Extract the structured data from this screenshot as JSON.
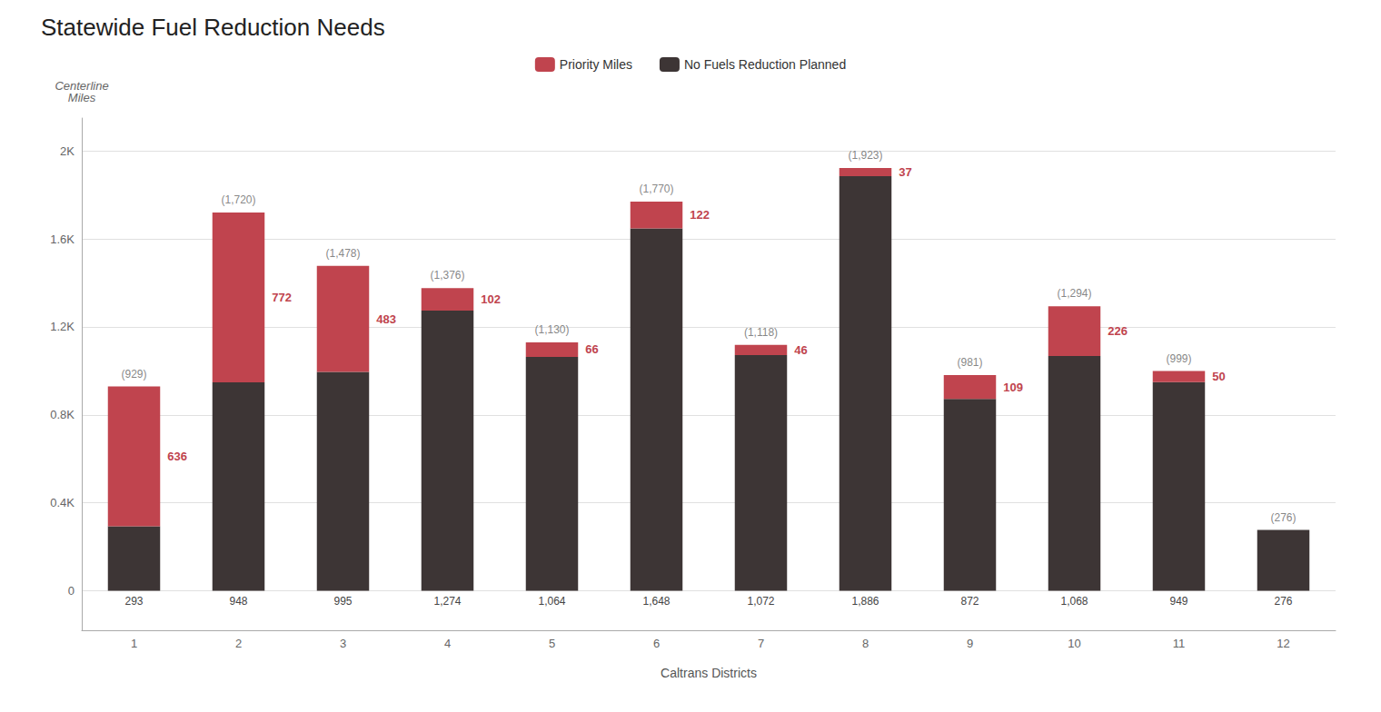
{
  "chart_data": {
    "type": "bar",
    "title": "Statewide Fuel Reduction Needs",
    "xlabel": "Caltrans Districts",
    "ylabel": "Centerline\nMiles",
    "categories": [
      "1",
      "2",
      "3",
      "4",
      "5",
      "6",
      "7",
      "8",
      "9",
      "10",
      "11",
      "12"
    ],
    "stacked": true,
    "series": [
      {
        "name": "No Fuels Reduction Planned",
        "color": "#3d3535",
        "values": [
          293,
          948,
          995,
          1274,
          1064,
          1648,
          1072,
          1886,
          872,
          1068,
          949,
          276
        ],
        "data_labels": true,
        "value_labels": [
          "293",
          "948",
          "995",
          "1,274",
          "1,064",
          "1,648",
          "1,072",
          "1,886",
          "872",
          "1,068",
          "949",
          "276"
        ]
      },
      {
        "name": "Priority Miles",
        "color": "#c0444e",
        "values": [
          636,
          772,
          483,
          102,
          66,
          122,
          46,
          37,
          109,
          226,
          50,
          0
        ],
        "data_labels": true,
        "value_labels": [
          "636",
          "772",
          "483",
          "102",
          "66",
          "122",
          "46",
          "37",
          "109",
          "226",
          "50",
          null
        ]
      }
    ],
    "annotations": [
      {
        "x": "1",
        "y": 929,
        "text": "(929)"
      },
      {
        "x": "2",
        "y": 1720,
        "text": "(1,720)"
      },
      {
        "x": "3",
        "y": 1478,
        "text": "(1,478)"
      },
      {
        "x": "4",
        "y": 1376,
        "text": "(1,376)"
      },
      {
        "x": "5",
        "y": 1130,
        "text": "(1,130)"
      },
      {
        "x": "6",
        "y": 1770,
        "text": "(1,770)"
      },
      {
        "x": "7",
        "y": 1118,
        "text": "(1,118)"
      },
      {
        "x": "8",
        "y": 1923,
        "text": "(1,923)"
      },
      {
        "x": "9",
        "y": 981,
        "text": "(981)"
      },
      {
        "x": "10",
        "y": 1294,
        "text": "(1,294)"
      },
      {
        "x": "11",
        "y": 999,
        "text": "(999)"
      },
      {
        "x": "12",
        "y": 276,
        "text": "(276)"
      }
    ],
    "ylim": [
      -180,
      2150
    ],
    "yticks": [
      0,
      {
        "value": 400,
        "label": "0.4K"
      },
      {
        "value": 800,
        "label": "0.8K"
      },
      {
        "value": 1200,
        "label": "1.2K"
      },
      {
        "value": 1600,
        "label": "1.6K"
      },
      {
        "value": 2000,
        "label": "2K"
      }
    ],
    "grid": true,
    "legend": "top"
  }
}
